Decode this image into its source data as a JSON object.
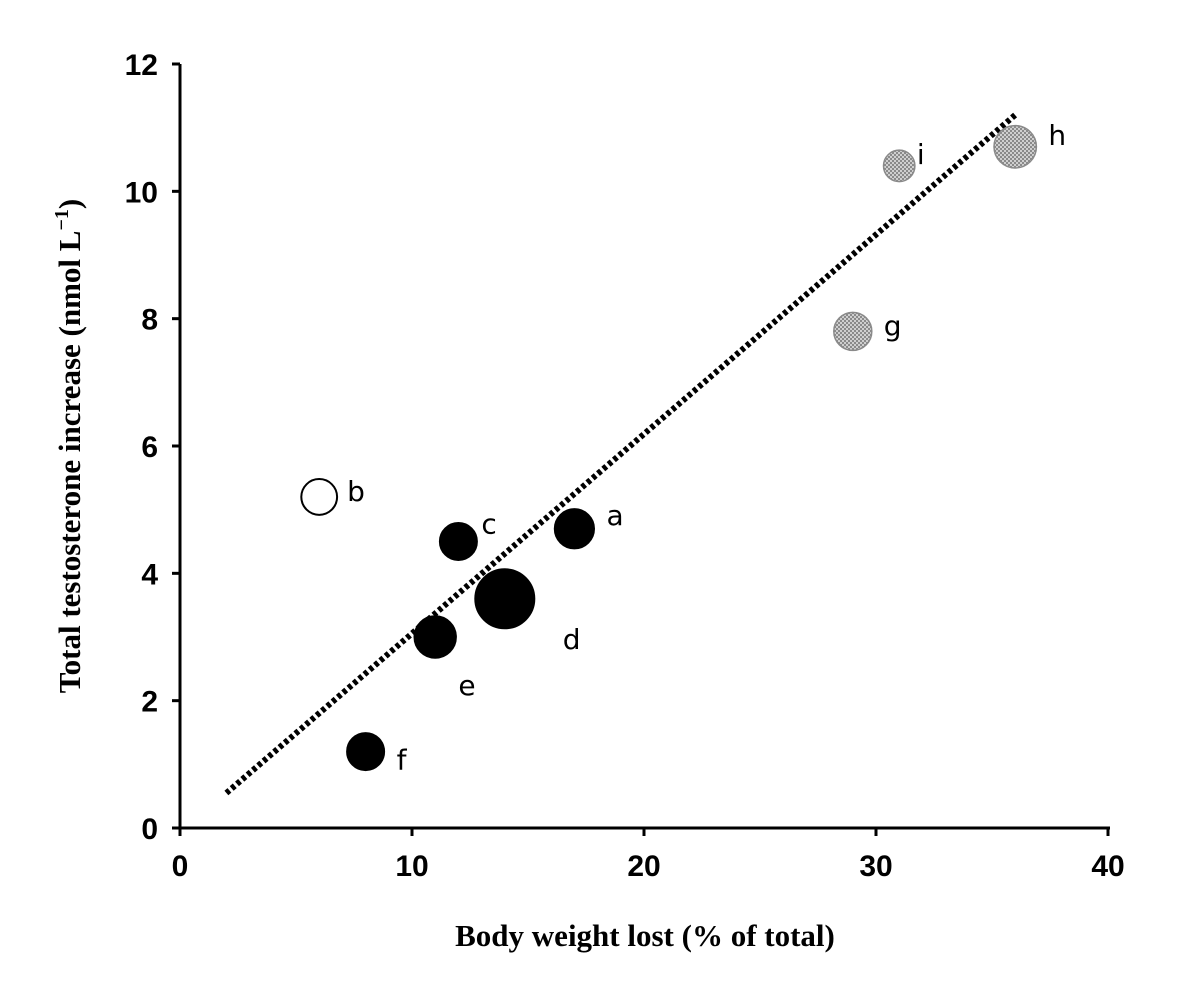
{
  "chart_data": {
    "type": "scatter",
    "xlabel": "Body weight lost (% of total)",
    "ylabel_main": "Total testosterone increase (nmol L",
    "ylabel_sup": "−1",
    "ylabel_close": ")",
    "xlim": [
      0,
      40
    ],
    "ylim": [
      0,
      12
    ],
    "xticks": [
      0,
      10,
      20,
      30,
      40
    ],
    "yticks": [
      0,
      2,
      4,
      6,
      8,
      10,
      12
    ],
    "grid": false,
    "legend": "none",
    "points": [
      {
        "label": "a",
        "x": 17,
        "y": 4.7,
        "relative_size": 0.55,
        "fill": "solid-black"
      },
      {
        "label": "b",
        "x": 6,
        "y": 5.2,
        "relative_size": 0.45,
        "fill": "open"
      },
      {
        "label": "c",
        "x": 12,
        "y": 4.5,
        "relative_size": 0.5,
        "fill": "solid-black"
      },
      {
        "label": "d",
        "x": 14,
        "y": 3.6,
        "relative_size": 1.0,
        "fill": "solid-black"
      },
      {
        "label": "e",
        "x": 11,
        "y": 3.0,
        "relative_size": 0.6,
        "fill": "solid-black"
      },
      {
        "label": "f",
        "x": 8,
        "y": 1.2,
        "relative_size": 0.5,
        "fill": "solid-black"
      },
      {
        "label": "g",
        "x": 29,
        "y": 7.8,
        "relative_size": 0.5,
        "fill": "hatched-gray"
      },
      {
        "label": "h",
        "x": 36,
        "y": 10.7,
        "relative_size": 0.6,
        "fill": "hatched-gray"
      },
      {
        "label": "i",
        "x": 31,
        "y": 10.4,
        "relative_size": 0.35,
        "fill": "hatched-gray"
      }
    ],
    "trendline": {
      "style": "dotted",
      "x": [
        2,
        36
      ],
      "y": [
        0.55,
        11.2
      ]
    },
    "colors": {
      "solid": "#000000",
      "open_fill": "#ffffff",
      "hatched_fill": "#b4b4b4"
    }
  }
}
